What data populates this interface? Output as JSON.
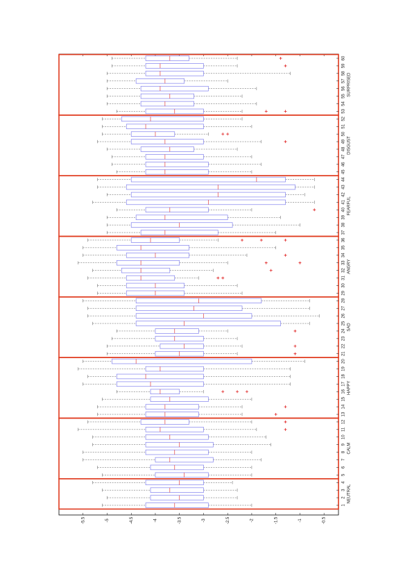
{
  "chart_data": {
    "type": "box",
    "categories": [
      1,
      2,
      3,
      4,
      5,
      6,
      7,
      8,
      9,
      10,
      11,
      12,
      13,
      14,
      15,
      16,
      17,
      18,
      19,
      20,
      21,
      22,
      23,
      24,
      25,
      26,
      27,
      28,
      29,
      30,
      31,
      32,
      33,
      34,
      35,
      36,
      37,
      38,
      39,
      40,
      41,
      42,
      43,
      44,
      45,
      46,
      47,
      48,
      49,
      50,
      51,
      52,
      53,
      54,
      55,
      56,
      57,
      58,
      59,
      60
    ],
    "groups": [
      {
        "label": "NEUTRAL",
        "span": [
          1,
          4
        ]
      },
      {
        "label": "CALM",
        "span": [
          5,
          12
        ]
      },
      {
        "label": "HAPPY",
        "span": [
          13,
          20
        ]
      },
      {
        "label": "SAD",
        "span": [
          21,
          28
        ]
      },
      {
        "label": "ANGRY",
        "span": [
          29,
          36
        ]
      },
      {
        "label": "FEARFUL",
        "span": [
          37,
          44
        ]
      },
      {
        "label": "DISGUST",
        "span": [
          45,
          52
        ]
      },
      {
        "label": "SURPRISED",
        "span": [
          53,
          60
        ]
      }
    ],
    "whisker_low": [
      -5.1,
      -5.0,
      -5.1,
      -5.3,
      -5.1,
      -5.2,
      -5.5,
      -5.5,
      -5.3,
      -5.3,
      -5.6,
      -5.4,
      -5.2,
      -5.2,
      -5.1,
      -4.8,
      -5.5,
      -5.4,
      -5.6,
      -5.5,
      -5.0,
      -5.0,
      -4.9,
      -4.8,
      -5.3,
      -5.4,
      -5.4,
      -5.5,
      -5.2,
      -5.2,
      -5.4,
      -5.3,
      -5.6,
      -5.5,
      -5.5,
      -5.4,
      -5.0,
      -5.0,
      -5.0,
      -4.8,
      -5.3,
      -5.0,
      -5.2,
      -5.2,
      -4.8,
      -4.9,
      -4.9,
      -5.0,
      -5.2,
      -5.1,
      -5.1,
      -5.1,
      -4.8,
      -5.0,
      -5.0,
      -5.0,
      -5.0,
      -5.0,
      -4.9,
      -4.9
    ],
    "q1": [
      -4.2,
      -4.1,
      -4.1,
      -4.2,
      -4.0,
      -4.1,
      -4.0,
      -4.2,
      -4.2,
      -4.2,
      -4.2,
      -4.3,
      -4.2,
      -4.2,
      -4.1,
      -4.1,
      -4.8,
      -4.8,
      -4.2,
      -4.9,
      -4.0,
      -3.9,
      -4.0,
      -4.0,
      -4.4,
      -4.4,
      -4.4,
      -4.4,
      -4.6,
      -4.6,
      -4.6,
      -4.7,
      -4.8,
      -4.6,
      -4.8,
      -4.5,
      -4.3,
      -4.5,
      -4.4,
      -4.2,
      -4.6,
      -4.5,
      -4.6,
      -4.5,
      -4.2,
      -4.2,
      -4.2,
      -4.3,
      -4.5,
      -4.5,
      -4.6,
      -4.7,
      -4.2,
      -4.3,
      -4.3,
      -4.3,
      -4.4,
      -4.2,
      -4.2,
      -4.2
    ],
    "median": [
      -3.6,
      -3.5,
      -3.7,
      -3.5,
      -3.4,
      -3.6,
      -3.7,
      -3.6,
      -3.5,
      -3.7,
      -3.9,
      -3.8,
      -3.8,
      -3.8,
      -3.7,
      -3.9,
      -4.1,
      -4.2,
      -3.9,
      -4.4,
      -3.5,
      -3.4,
      -3.6,
      -3.6,
      -3.4,
      -3.0,
      -3.2,
      -3.1,
      -4.0,
      -4.0,
      -4.3,
      -4.3,
      -4.3,
      -4.0,
      -4.3,
      -4.1,
      -3.8,
      -3.5,
      -3.8,
      -3.7,
      -2.9,
      -2.7,
      -2.7,
      -1.9,
      -3.8,
      -3.8,
      -3.8,
      -3.7,
      -3.8,
      -4.0,
      -4.2,
      -4.1,
      -3.6,
      -3.8,
      -3.7,
      -3.9,
      -3.8,
      -3.9,
      -3.9,
      -3.7
    ],
    "q3": [
      -2.9,
      -3.0,
      -3.0,
      -3.0,
      -2.9,
      -3.0,
      -2.8,
      -2.9,
      -2.8,
      -2.9,
      -3.0,
      -3.3,
      -3.1,
      -3.1,
      -2.9,
      -3.5,
      -3.0,
      -3.0,
      -3.0,
      -2.0,
      -3.0,
      -3.0,
      -3.0,
      -3.1,
      -1.4,
      -2.0,
      -2.2,
      -1.8,
      -3.4,
      -3.4,
      -3.6,
      -3.7,
      -3.5,
      -3.3,
      -3.3,
      -3.5,
      -2.7,
      -2.4,
      -2.5,
      -2.9,
      -1.3,
      -1.3,
      -1.1,
      -1.3,
      -2.9,
      -2.9,
      -3.0,
      -3.2,
      -3.0,
      -3.6,
      -3.0,
      -3.0,
      -3.0,
      -3.2,
      -3.2,
      -2.9,
      -3.4,
      -3.0,
      -3.0,
      -3.3
    ],
    "whisker_high": [
      -2.0,
      -2.3,
      -2.3,
      -2.4,
      -2.0,
      -2.0,
      -1.8,
      -2.0,
      -1.6,
      -1.7,
      -1.9,
      -2.0,
      -2.2,
      -2.2,
      -2.0,
      -3.0,
      -1.2,
      -1.2,
      -1.2,
      -0.9,
      -2.3,
      -2.2,
      -2.3,
      -2.5,
      -0.8,
      -0.6,
      -0.8,
      -0.8,
      -2.2,
      -2.3,
      -3.1,
      -2.8,
      -2.5,
      -2.1,
      -1.5,
      -2.7,
      -1.5,
      -1.0,
      -1.4,
      -2.0,
      -0.7,
      -0.9,
      -0.7,
      -0.7,
      -2.0,
      -1.8,
      -2.0,
      -2.3,
      -1.8,
      -2.9,
      -2.0,
      -2.2,
      -2.2,
      -1.9,
      -2.2,
      -1.9,
      -2.5,
      -1.2,
      -2.3,
      -2.3
    ],
    "outliers": [
      [],
      [],
      [],
      [],
      [],
      [],
      [],
      [],
      [],
      [],
      [
        -1.3
      ],
      [
        -1.3
      ],
      [
        -1.5
      ],
      [
        -1.3
      ],
      [],
      [
        -2.6,
        -2.3,
        -2.1
      ],
      [],
      [],
      [],
      [],
      [
        -1.1
      ],
      [
        -1.1
      ],
      [],
      [
        -1.1
      ],
      [],
      [],
      [],
      [],
      [],
      [],
      [
        -2.7,
        -2.6
      ],
      [
        -1.6
      ],
      [
        -1.7,
        -1.0
      ],
      [
        -1.3
      ],
      [],
      [
        -2.2,
        -1.8,
        -1.3
      ],
      [],
      [],
      [],
      [
        -0.7
      ],
      [],
      [],
      [],
      [],
      [],
      [],
      [],
      [],
      [
        -1.3
      ],
      [
        -2.6,
        -2.5
      ],
      [],
      [],
      [
        -1.7,
        -1.3
      ],
      [],
      [],
      [],
      [],
      [],
      [
        -1.3
      ],
      [
        -1.4
      ]
    ],
    "box_color": "#8080ee",
    "median_color": "#e04040",
    "whisker_color": "#555555",
    "outlier_color": "#e02020",
    "group_color": "#e03a1e",
    "xlim": [
      -6,
      -0.2
    ],
    "xticks": [
      -5.5,
      -5,
      -4.5,
      -4,
      -3.5,
      -3,
      -2.5,
      -2,
      -1.5,
      -1,
      -0.5
    ]
  }
}
